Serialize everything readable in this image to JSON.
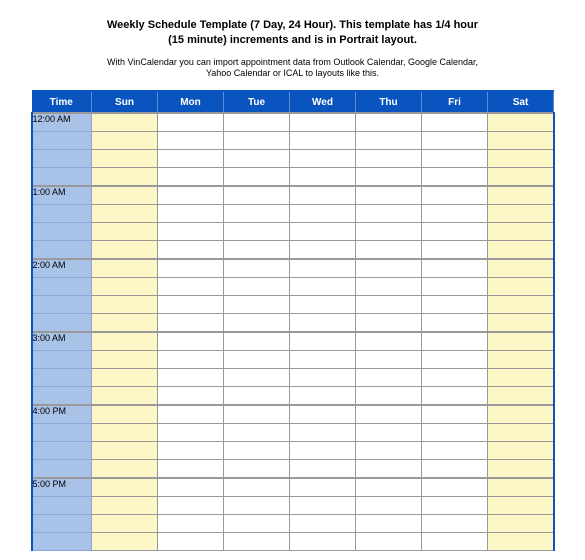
{
  "title_line1": "Weekly Schedule Template (7 Day, 24 Hour).  This template has 1/4 hour",
  "title_line2": "(15 minute) increments and is in Portrait layout.",
  "subtitle_line1": "With VinCalendar you can import appointment data from Outlook Calendar, Google Calendar,",
  "subtitle_line2": "Yahoo Calendar or ICAL to layouts like this.",
  "header_time": "Time",
  "header_days": [
    "Sun",
    "Mon",
    "Tue",
    "Wed",
    "Thu",
    "Fri",
    "Sat"
  ],
  "time_labels": [
    "12:00 AM",
    "1:00 AM",
    "2:00 AM",
    "3:00 AM",
    "4:00 PM",
    "5:00 PM"
  ],
  "slots_per_hour": 4,
  "colors": {
    "header_bg": "#0a54bf",
    "header_text": "#ffffff",
    "time_col_bg": "#a8c2e8",
    "weekend_bg": "#fdf6c7",
    "weekday_bg": "#ffffff",
    "hour_separator": "#999999",
    "grid_line": "#999999"
  }
}
